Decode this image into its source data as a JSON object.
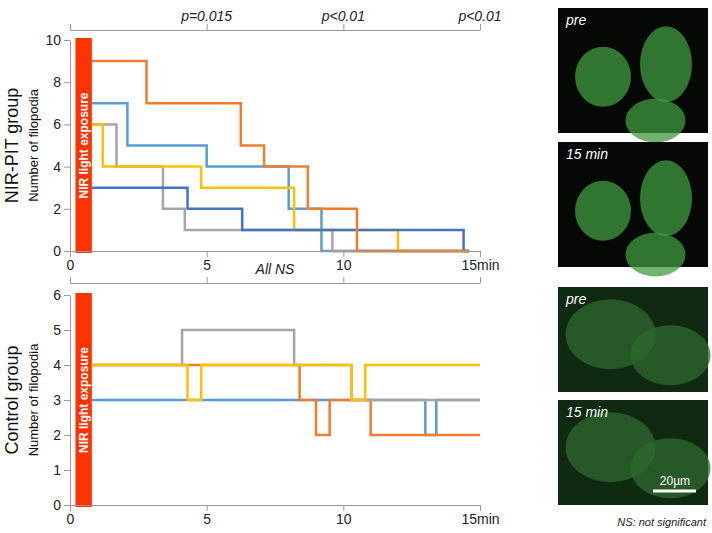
{
  "chart_data": [
    {
      "type": "step",
      "title": "NIR-PIT group",
      "ylabel": "Number of filopodia",
      "xlim": [
        0,
        15
      ],
      "xticks": [
        0,
        5,
        10,
        {
          "value": 15,
          "label": "15min"
        }
      ],
      "ylim": [
        0,
        10
      ],
      "yticks": [
        0,
        2,
        4,
        6,
        8,
        10
      ],
      "annotations": [
        {
          "x": 5,
          "text": "p=0.015"
        },
        {
          "x": 10,
          "text": "p<0.01"
        },
        {
          "x": 15,
          "text": "p<0.01"
        }
      ],
      "exposure": {
        "label": "NIR light exposure",
        "x": [
          0.2,
          0.8
        ]
      },
      "images": [
        "pre",
        "15 min"
      ],
      "series": [
        {
          "color": "#5b9bd5",
          "x": [
            0.8,
            2.1,
            5.0,
            8.0,
            9.2,
            14.6
          ],
          "values": [
            7,
            5,
            4,
            2,
            0,
            0
          ]
        },
        {
          "color": "#a5a5a5",
          "x": [
            0.8,
            1.7,
            3.4,
            4.2,
            9.6,
            14.6
          ],
          "values": [
            6,
            4,
            2,
            1,
            0,
            0
          ]
        },
        {
          "color": "#ffc000",
          "x": [
            0.8,
            1.2,
            4.8,
            8.2,
            12.0,
            14.6
          ],
          "values": [
            6,
            4,
            3,
            1,
            0,
            0
          ]
        },
        {
          "color": "#4472c4",
          "x": [
            0.8,
            4.3,
            6.3,
            14.4,
            14.6
          ],
          "values": [
            3,
            2,
            1,
            0,
            0
          ]
        },
        {
          "color": "#ed7d31",
          "x": [
            0.8,
            2.8,
            6.25,
            7.1,
            8.7,
            10.5,
            14.6
          ],
          "values": [
            9,
            7,
            5,
            4,
            2,
            0,
            0
          ]
        }
      ]
    },
    {
      "type": "step",
      "title": "Control group",
      "ylabel": "Number of filopodia",
      "xlim": [
        0,
        15
      ],
      "xticks": [
        0,
        5,
        10,
        {
          "value": 15,
          "label": "15min"
        }
      ],
      "ylim": [
        0,
        6
      ],
      "yticks": [
        0,
        1,
        2,
        3,
        4,
        5,
        6
      ],
      "annotations": [
        {
          "x": 7.5,
          "text": "All NS"
        }
      ],
      "exposure": {
        "label": "NIR light exposure",
        "x": [
          0.2,
          0.8
        ]
      },
      "images": [
        "pre",
        "15 min"
      ],
      "scale_bar": "20µm",
      "series": [
        {
          "color": "#5b9bd5",
          "x": [
            0.8,
            13.0,
            13.4,
            15
          ],
          "values": [
            3,
            2,
            3,
            3
          ]
        },
        {
          "color": "#ed7d31",
          "x": [
            0.8,
            8.4,
            9.0,
            9.5,
            11.0,
            15
          ],
          "values": [
            4,
            3,
            2,
            3,
            2,
            2
          ]
        },
        {
          "color": "#a5a5a5",
          "x": [
            0.8,
            4.1,
            8.2,
            10.3,
            15
          ],
          "values": [
            4,
            5,
            4,
            3,
            3
          ]
        },
        {
          "color": "#ffc000",
          "x": [
            0.8,
            4.3,
            4.8,
            10.3,
            10.8,
            15
          ],
          "values": [
            4,
            3,
            4,
            3,
            4,
            4
          ]
        }
      ]
    }
  ],
  "footnote": "NS: not significant"
}
